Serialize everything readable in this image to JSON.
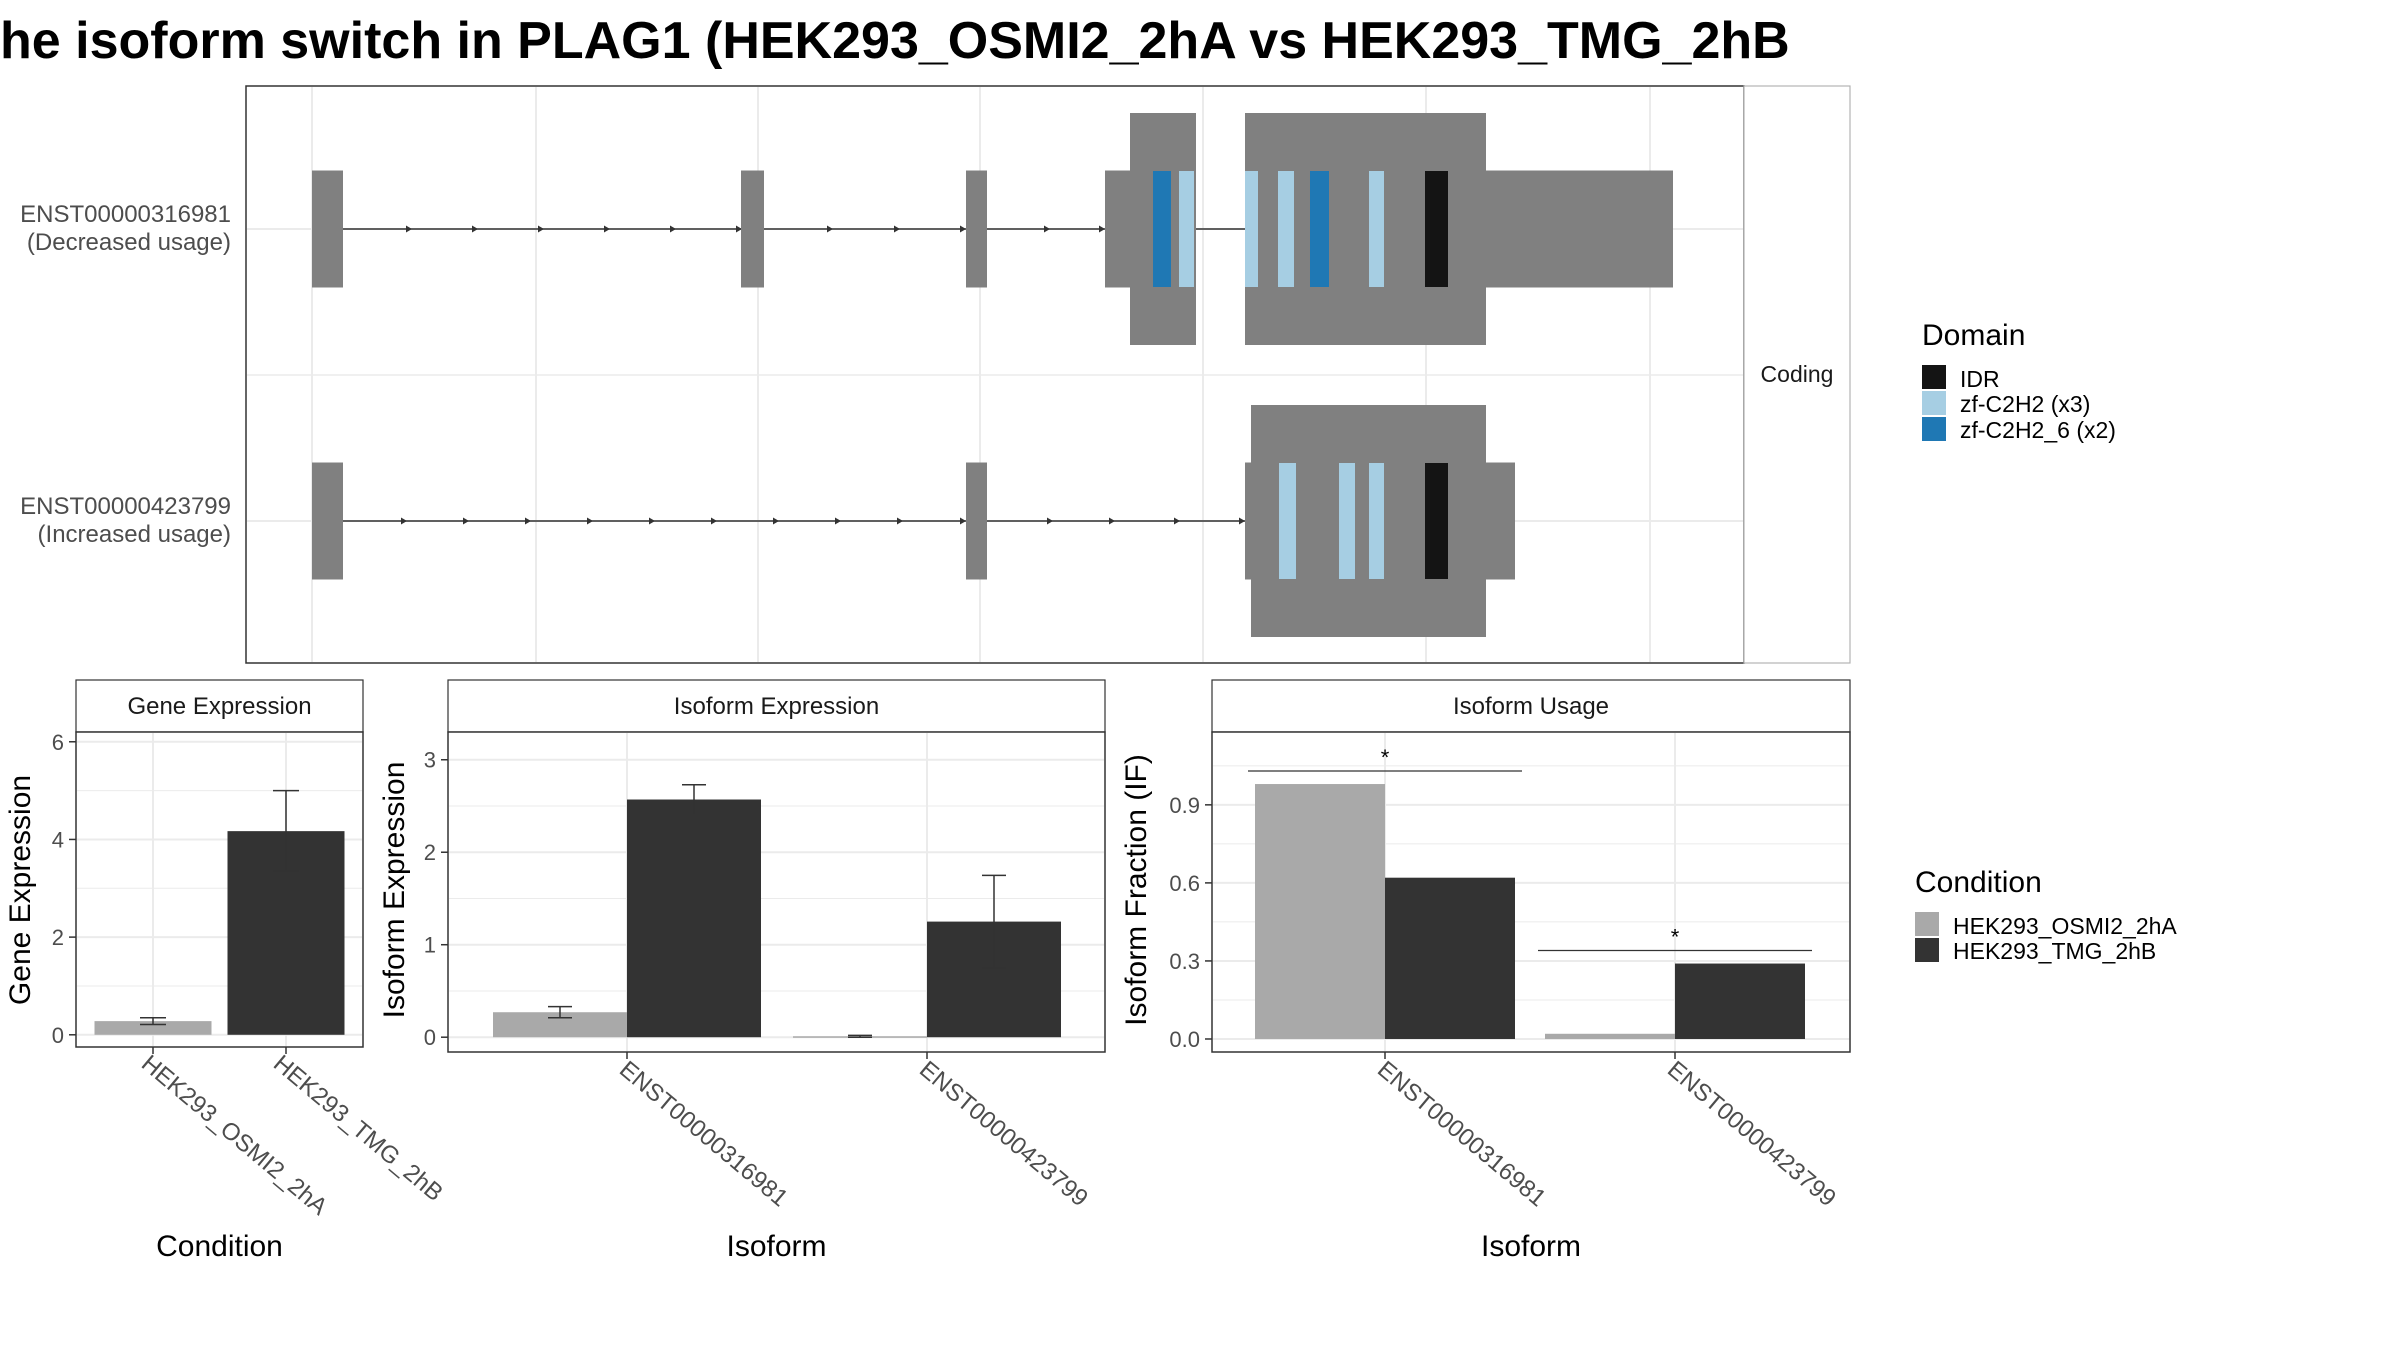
{
  "title": "he isoform switch in PLAG1 (HEK293_OSMI2_2hA vs HEK293_TMG_2hB",
  "colors": {
    "exon": "#808080",
    "idr": "#141414",
    "zf_c2h2": "#a6cee3",
    "zf_c2h2_6": "#1f78b4",
    "cond_a": "#a9a9a9",
    "cond_b": "#333333",
    "grid": "#ebebeb",
    "border": "#333333"
  },
  "structure": {
    "facet_label": "Coding",
    "isoforms": [
      {
        "id": "ENST00000316981",
        "note": "(Decreased usage)"
      },
      {
        "id": "ENST00000423799",
        "note": "(Increased usage)"
      }
    ]
  },
  "domain_legend": {
    "title": "Domain",
    "items": [
      {
        "label": "IDR",
        "color": "#141414"
      },
      {
        "label": "zf-C2H2 (x3)",
        "color": "#a6cee3"
      },
      {
        "label": "zf-C2H2_6 (x2)",
        "color": "#1f78b4"
      }
    ]
  },
  "condition_legend": {
    "title": "Condition",
    "items": [
      {
        "label": "HEK293_OSMI2_2hA",
        "color": "#a9a9a9"
      },
      {
        "label": "HEK293_TMG_2hB",
        "color": "#333333"
      }
    ]
  },
  "chart_data": [
    {
      "type": "bar",
      "strip": "Gene Expression",
      "xlabel": "Condition",
      "ylabel": "Gene Expression",
      "categories": [
        "HEK293_OSMI2_2hA",
        "HEK293_TMG_2hB"
      ],
      "values": [
        0.28,
        4.17
      ],
      "errors": [
        [
          0.21,
          0.35
        ],
        [
          3.35,
          5.0
        ]
      ],
      "ylim": [
        -0.25,
        6.2
      ],
      "yticks": [
        "0",
        "2",
        "4",
        "6"
      ]
    },
    {
      "type": "bar",
      "strip": "Isoform Expression",
      "xlabel": "Isoform",
      "ylabel": "Isoform Expression",
      "categories": [
        "ENST00000316981",
        "ENST00000423799"
      ],
      "series": [
        {
          "name": "HEK293_OSMI2_2hA",
          "values": [
            0.27,
            0.01
          ],
          "errors": [
            [
              0.21,
              0.33
            ],
            [
              0.0,
              0.02
            ]
          ]
        },
        {
          "name": "HEK293_TMG_2hB",
          "values": [
            2.57,
            1.25
          ],
          "errors": [
            [
              2.4,
              2.73
            ],
            [
              0.75,
              1.75
            ]
          ]
        }
      ],
      "ylim": [
        -0.16,
        3.3
      ],
      "yticks": [
        "0",
        "1",
        "2",
        "3"
      ]
    },
    {
      "type": "bar",
      "strip": "Isoform Usage",
      "xlabel": "Isoform",
      "ylabel": "Isoform Fraction (IF)",
      "categories": [
        "ENST00000316981",
        "ENST00000423799"
      ],
      "series": [
        {
          "name": "HEK293_OSMI2_2hA",
          "values": [
            0.98,
            0.02
          ]
        },
        {
          "name": "HEK293_TMG_2hB",
          "values": [
            0.62,
            0.29
          ]
        }
      ],
      "significance": [
        "*",
        "*"
      ],
      "ylim": [
        -0.05,
        1.18
      ],
      "yticks": [
        "0.0",
        "0.3",
        "0.6",
        "0.9"
      ]
    }
  ]
}
